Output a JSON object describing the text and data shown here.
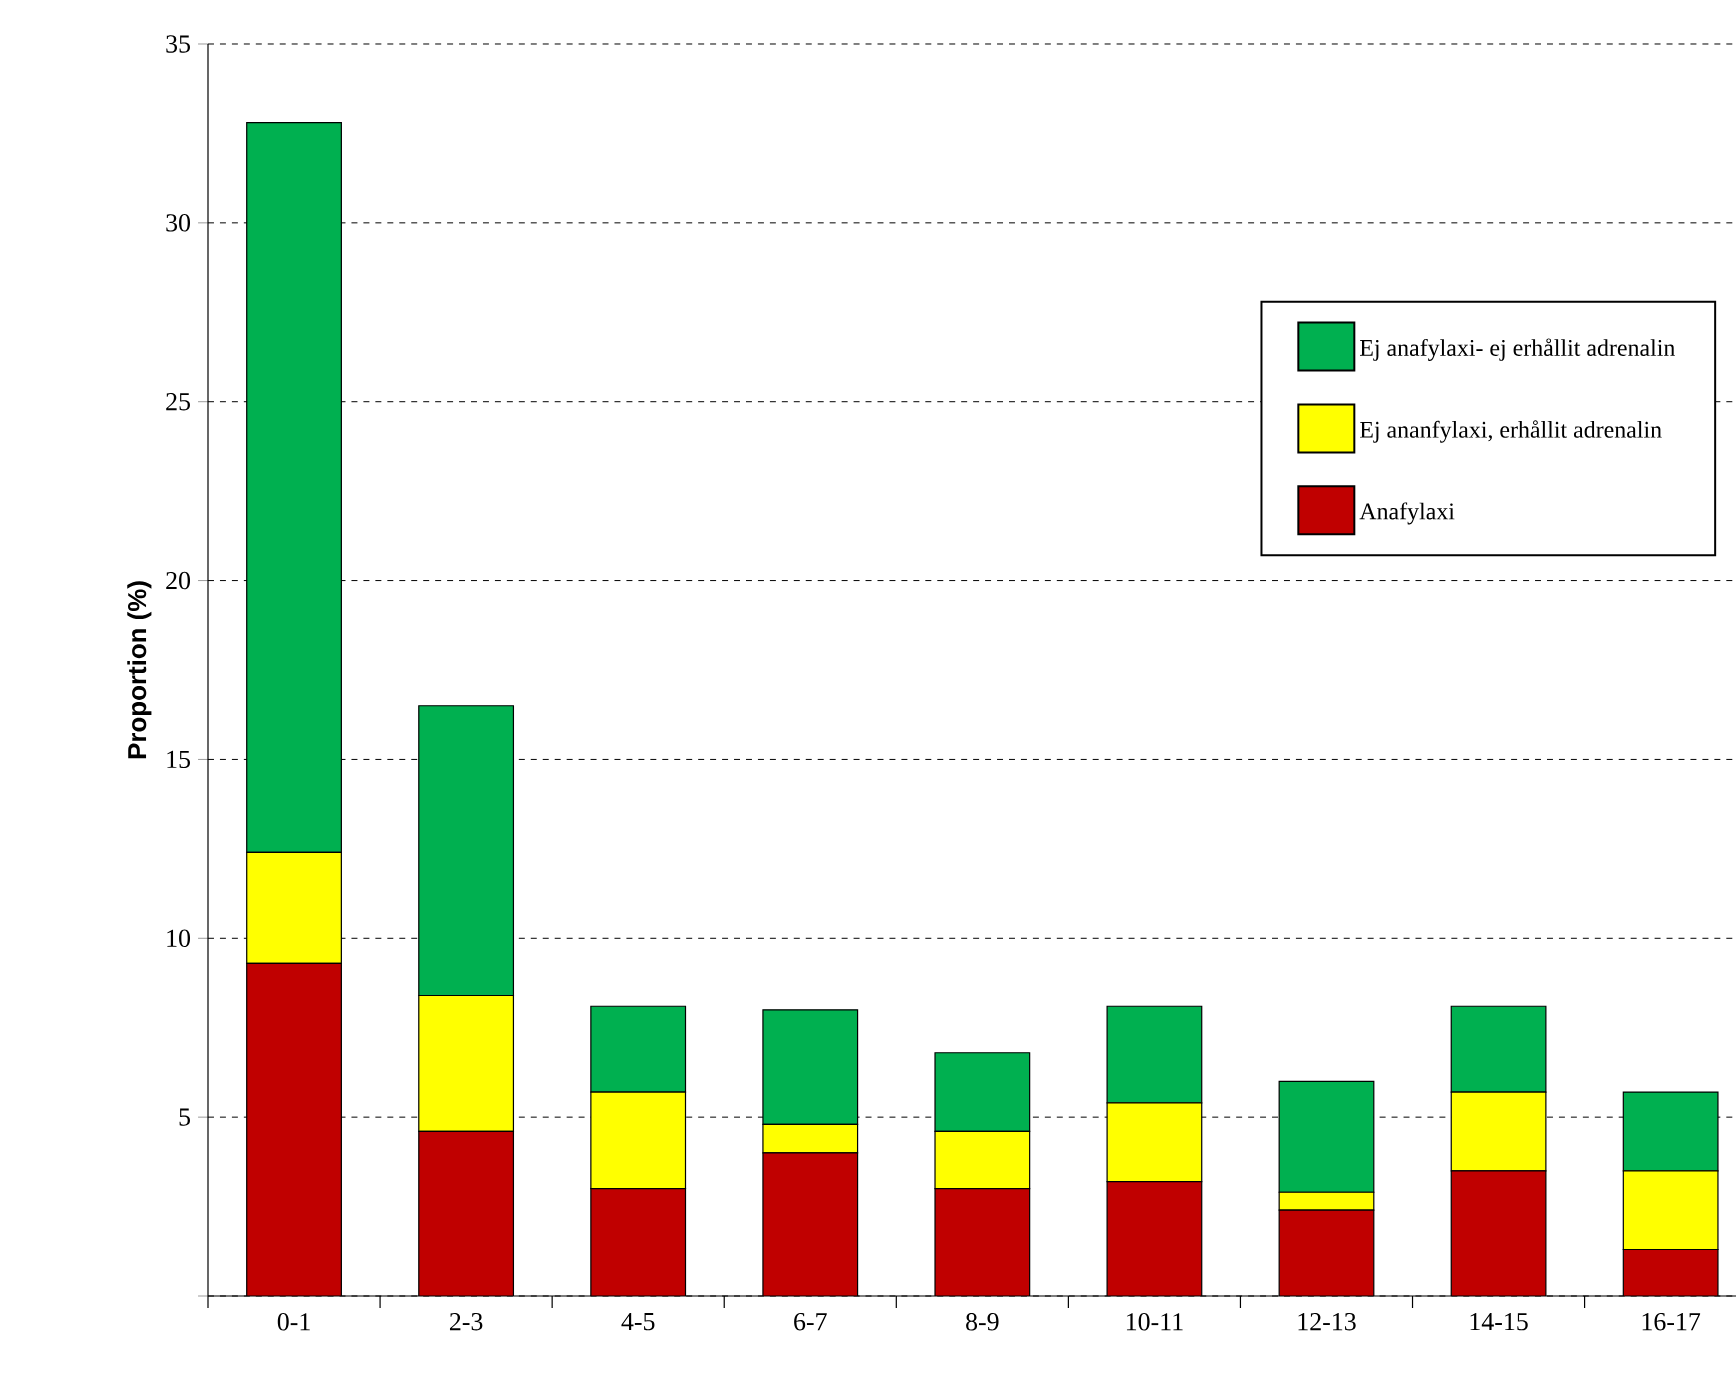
{
  "chart_data": {
    "type": "bar",
    "stacked": true,
    "ylabel": "Proportion (%)",
    "categories": [
      "0-1",
      "2-3",
      "4-5",
      "6-7",
      "8-9",
      "10-11",
      "12-13",
      "14-15",
      "16-17"
    ],
    "series": [
      {
        "name": "Anafylaxi",
        "color": "#c00000",
        "values": [
          9.3,
          4.6,
          3.0,
          4.0,
          3.0,
          3.2,
          2.4,
          3.5,
          1.3
        ]
      },
      {
        "name": "Ej ananfylaxi, erhållit adrenalin",
        "color": "#ffff00",
        "values": [
          3.1,
          3.8,
          2.7,
          0.8,
          1.6,
          2.2,
          0.5,
          2.2,
          2.2
        ]
      },
      {
        "name": "Ej anafylaxi- ej erhållit adrenalin",
        "color": "#00b050",
        "values": [
          20.4,
          8.1,
          2.4,
          3.2,
          2.2,
          2.7,
          3.1,
          2.4,
          2.2
        ]
      }
    ],
    "ylim": [
      0,
      35
    ],
    "yticks": [
      {
        "value": 0,
        "label": null
      },
      5,
      10,
      15,
      20,
      25,
      30,
      35
    ],
    "grid": "y",
    "legend": "top right"
  }
}
